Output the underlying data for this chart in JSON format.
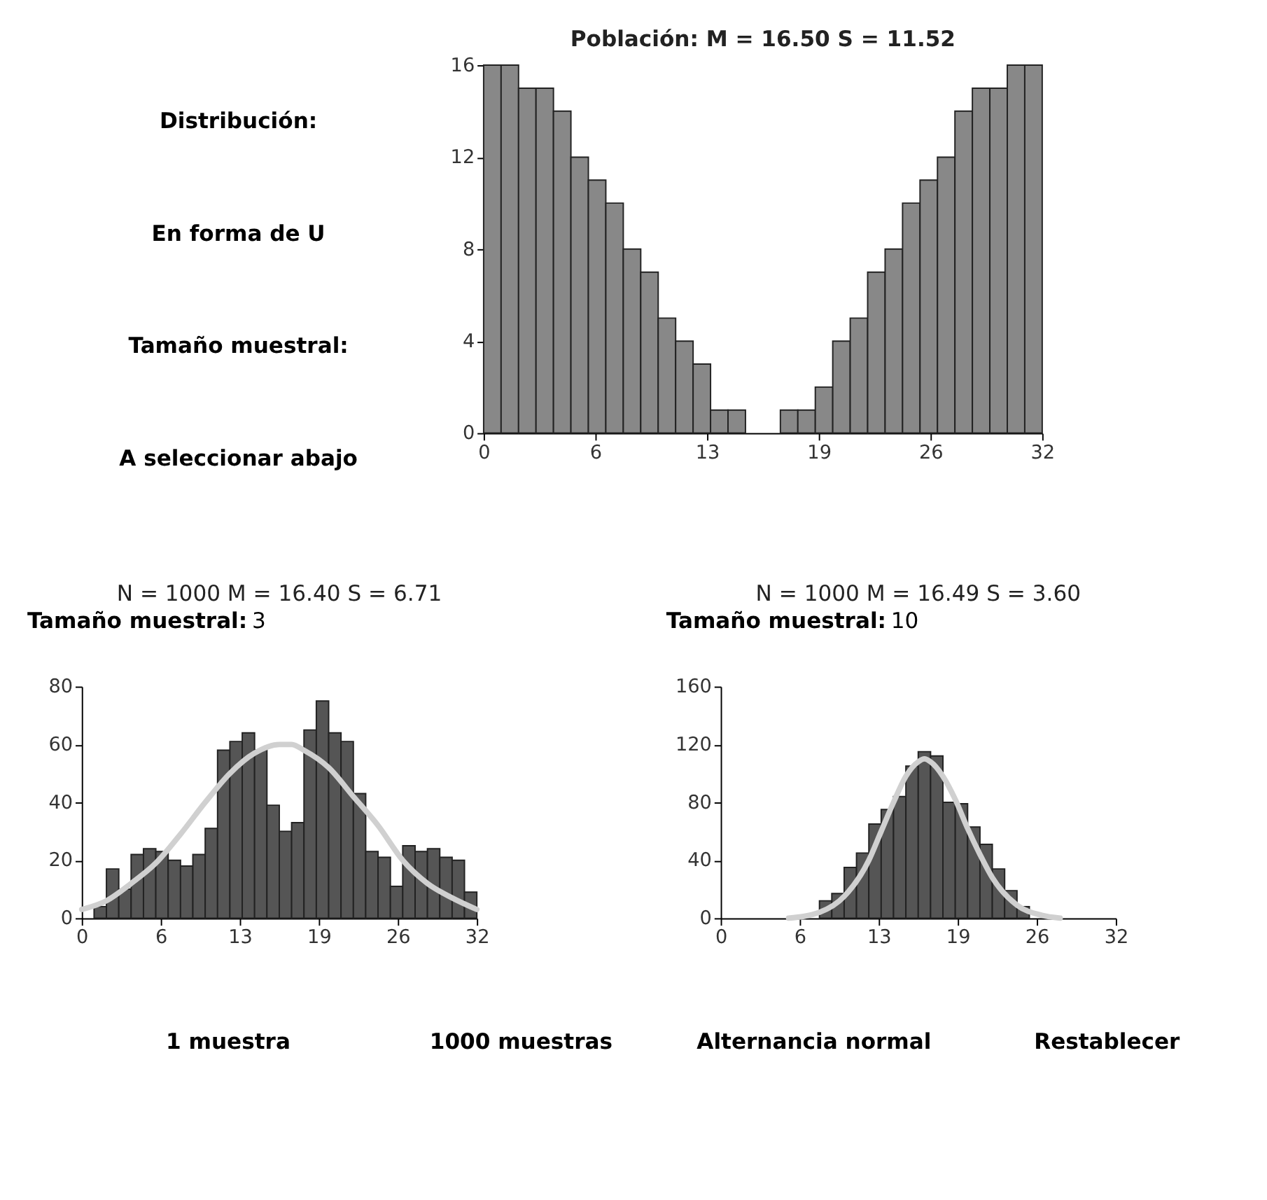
{
  "chart_data": [
    {
      "type": "other",
      "annotations": [
        "Distribución:",
        "En forma de U",
        "Tamaño muestral:",
        "A seleccionar abajo"
      ]
    },
    {
      "type": "histogram",
      "title": "Población:  M = 16.50    S = 11.52",
      "color": "#888888",
      "bins": [
        0,
        1,
        2,
        3,
        4,
        5,
        6,
        7,
        8,
        9,
        10,
        11,
        12,
        13,
        14,
        15,
        16,
        17,
        18,
        19,
        20,
        21,
        22,
        23,
        24,
        25,
        26,
        27,
        28,
        29,
        30,
        31,
        32
      ],
      "values": [
        16,
        16,
        15,
        15,
        14,
        12,
        11,
        10,
        8,
        7,
        5,
        4,
        3,
        1,
        1,
        0,
        0,
        1,
        1,
        2,
        4,
        5,
        7,
        8,
        10,
        11,
        12,
        14,
        15,
        15,
        16,
        16
      ],
      "xlim": [
        0,
        32
      ],
      "xticks": [
        0,
        {
          "value": 6.4,
          "label": "6"
        },
        {
          "value": 12.8,
          "label": "13"
        },
        {
          "value": 19.2,
          "label": "19"
        },
        {
          "value": 25.6,
          "label": "26"
        },
        32
      ],
      "ylim": [
        0,
        16
      ],
      "yticks": [
        0,
        4,
        8,
        12,
        16
      ],
      "grid": false
    },
    {
      "type": "histogram",
      "title": "N = 1000  M = 16.40  S = 6.71",
      "annotations": [
        "Tamaño muestral:",
        "3"
      ],
      "series": [
        {
          "type": "histogram",
          "color": "#555555",
          "bins": [
            0,
            1,
            2,
            3,
            4,
            5,
            6,
            7,
            8,
            9,
            10,
            11,
            12,
            13,
            14,
            15,
            16,
            17,
            18,
            19,
            20,
            21,
            22,
            23,
            24,
            25,
            26,
            27,
            28,
            29,
            30,
            31,
            32
          ],
          "values": [
            0,
            4,
            17,
            10,
            22,
            24,
            23,
            20,
            18,
            22,
            31,
            58,
            61,
            64,
            58,
            39,
            30,
            33,
            65,
            75,
            64,
            61,
            43,
            23,
            21,
            11,
            25,
            23,
            24,
            21,
            20,
            9
          ]
        },
        {
          "type": "line",
          "color": "#d0d0d0",
          "x": [
            0,
            2,
            4,
            6,
            8,
            10,
            12,
            14,
            16,
            17,
            18,
            20,
            22,
            24,
            26,
            28,
            30,
            32
          ],
          "values": [
            3,
            6,
            12,
            19,
            29,
            40,
            50,
            57,
            60,
            60,
            58,
            52,
            42,
            32,
            20,
            12,
            7,
            3
          ]
        }
      ],
      "xlim": [
        0,
        32
      ],
      "xticks": [
        0,
        {
          "value": 6.4,
          "label": "6"
        },
        {
          "value": 12.8,
          "label": "13"
        },
        {
          "value": 19.2,
          "label": "19"
        },
        {
          "value": 25.6,
          "label": "26"
        },
        32
      ],
      "ylim": [
        0,
        80
      ],
      "yticks": [
        0,
        20,
        40,
        60,
        80
      ],
      "grid": false
    },
    {
      "type": "histogram",
      "title": "N = 1000  M = 16.49  S = 3.60",
      "annotations": [
        "Tamaño muestral:",
        "10"
      ],
      "series": [
        {
          "type": "histogram",
          "color": "#555555",
          "bins": [
            7,
            8,
            9,
            10,
            11,
            12,
            13,
            14,
            15,
            16,
            17,
            18,
            19,
            20,
            21,
            22,
            23,
            24,
            25,
            26
          ],
          "values": [
            null,
            12,
            17,
            35,
            45,
            65,
            75,
            84,
            105,
            115,
            112,
            80,
            79,
            63,
            51,
            34,
            19,
            8,
            null
          ]
        },
        {
          "type": "line",
          "color": "#d0d0d0",
          "x": [
            5.5,
            8,
            10,
            12,
            13,
            14,
            15,
            16,
            16.5,
            17,
            18,
            19,
            20,
            21,
            22,
            24,
            26,
            27.5
          ],
          "values": [
            0,
            4,
            15,
            40,
            60,
            80,
            98,
            108,
            110,
            108,
            98,
            82,
            62,
            44,
            28,
            9,
            2,
            0
          ]
        }
      ],
      "xlim": [
        0,
        32
      ],
      "xticks": [
        0,
        {
          "value": 6.4,
          "label": "6"
        },
        {
          "value": 12.8,
          "label": "13"
        },
        {
          "value": 19.2,
          "label": "19"
        },
        {
          "value": 25.6,
          "label": "26"
        },
        32
      ],
      "ylim": [
        0,
        160
      ],
      "yticks": [
        0,
        40,
        80,
        120,
        160
      ],
      "grid": false
    },
    {
      "type": "other",
      "annotations": [
        "1 muestra",
        "1000 muestras",
        "Alternancia normal",
        "Restablecer"
      ]
    }
  ]
}
